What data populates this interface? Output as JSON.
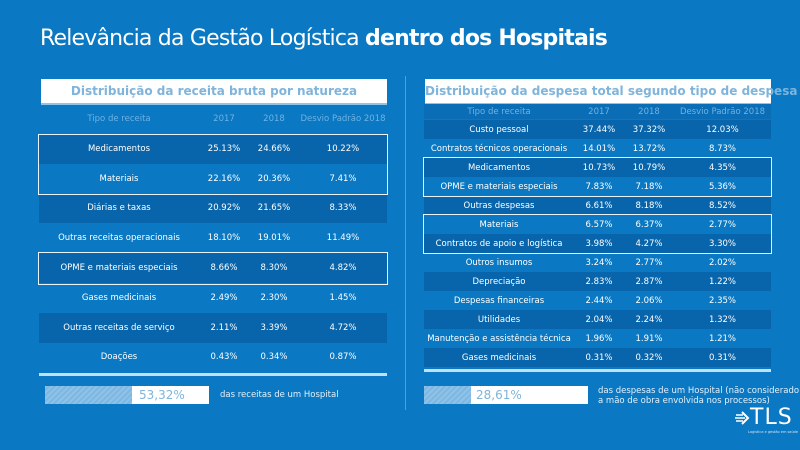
{
  "header": {
    "title_regular": "Relevância da Gestão Logística",
    "title_bold": "dentro dos Hospitais"
  },
  "left_table": {
    "title": "Distribuição da receita bruta por natureza",
    "columns": [
      "Tipo de receita",
      "2017",
      "2018",
      "Desvio Padrão 2018"
    ],
    "rows": [
      [
        "Medicamentos",
        "25.13%",
        "24.66%",
        "10.22%"
      ],
      [
        "Materiais",
        "22.16%",
        "20.36%",
        "7.41%"
      ],
      [
        "Diárias e taxas",
        "20.92%",
        "21.65%",
        "8.33%"
      ],
      [
        "Outras receitas operacionais",
        "18.10%",
        "19.01%",
        "11.49%"
      ],
      [
        "OPME e materiais especiais",
        "8.66%",
        "8.30%",
        "4.82%"
      ],
      [
        "Gases medicinais",
        "2.49%",
        "2.30%",
        "1.45%"
      ],
      [
        "Outras receitas de serviço",
        "2.11%",
        "3.39%",
        "4.72%"
      ],
      [
        "Doações",
        "0.43%",
        "0.34%",
        "0.87%"
      ]
    ],
    "summary": {
      "value": "53,32%",
      "fill_percent": 53.32,
      "note": "das receitas de um Hospital"
    }
  },
  "right_table": {
    "title": "Distribuição da despesa total segundo tipo de despesa",
    "columns": [
      "Tipo de receita",
      "2017",
      "2018",
      "Desvio Padrão 2018"
    ],
    "rows": [
      [
        "Custo pessoal",
        "37.44%",
        "37.32%",
        "12.03%"
      ],
      [
        "Contratos técnicos operacionais",
        "14.01%",
        "13.72%",
        "8.73%"
      ],
      [
        "Medicamentos",
        "10.73%",
        "10.79%",
        "4.35%"
      ],
      [
        "OPME e materiais especiais",
        "7.83%",
        "7.18%",
        "5.36%"
      ],
      [
        "Outras despesas",
        "6.61%",
        "8.18%",
        "8.52%"
      ],
      [
        "Materiais",
        "6.57%",
        "6.37%",
        "2.77%"
      ],
      [
        "Contratos de apoio e logística",
        "3.98%",
        "4.27%",
        "3.30%"
      ],
      [
        "Outros insumos",
        "3.24%",
        "2.77%",
        "2.02%"
      ],
      [
        "Depreciação",
        "2.83%",
        "2.87%",
        "1.22%"
      ],
      [
        "Despesas financeiras",
        "2.44%",
        "2.06%",
        "2.35%"
      ],
      [
        "Utilidades",
        "2.04%",
        "2.24%",
        "1.32%"
      ],
      [
        "Manutenção e assistência técnica",
        "1.96%",
        "1.91%",
        "1.21%"
      ],
      [
        "Gases medicinais",
        "0.31%",
        "0.32%",
        "0.31%"
      ]
    ],
    "summary": {
      "value": "28,61%",
      "fill_percent": 28.61,
      "note_line1": "das despesas de um Hospital (não considerado",
      "note_line2": "a mão de obra envolvida nos processos)"
    }
  },
  "logo": {
    "name": "TLS",
    "tagline": "Logística e gestão em saúde"
  },
  "colors": {
    "background": "#0a78c2",
    "band": "#0865ab",
    "title_text": "#7fb4db"
  }
}
